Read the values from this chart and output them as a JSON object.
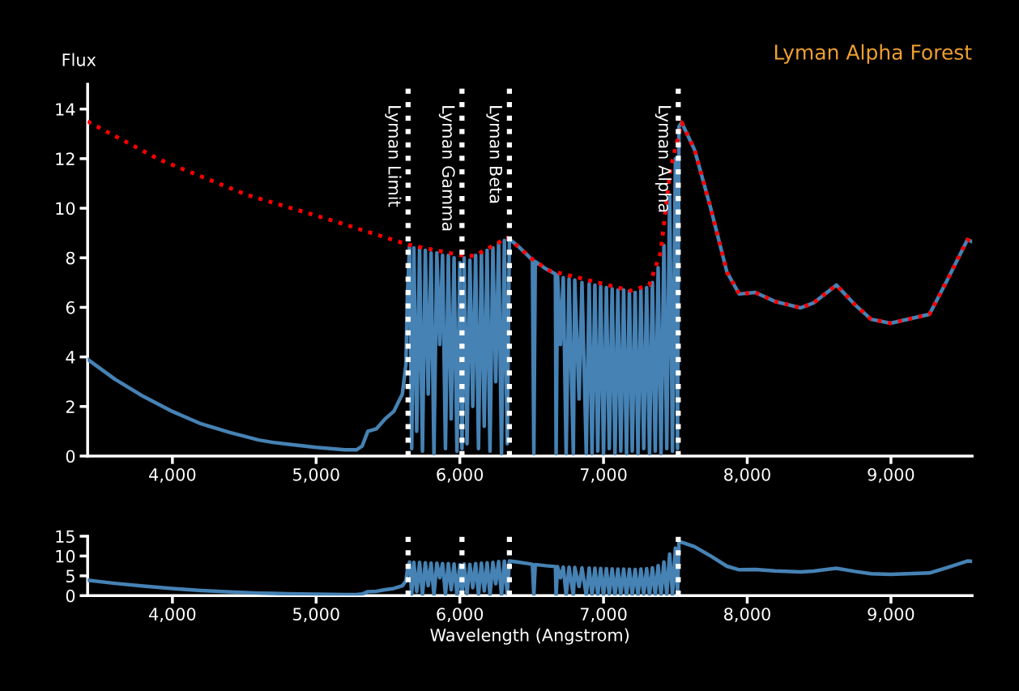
{
  "chart_data": [
    {
      "type": "line",
      "title": "Lyman Alpha Forest",
      "ylabel": "Flux",
      "xlim": [
        3410,
        9565
      ],
      "xticks": [
        {
          "value": 4000,
          "label": "4,000"
        },
        {
          "value": 5000,
          "label": "5,000"
        },
        {
          "value": 6000,
          "label": "6,000"
        },
        {
          "value": 7000,
          "label": "7,000"
        },
        {
          "value": 8000,
          "label": "8,000"
        },
        {
          "value": 9000,
          "label": "9,000"
        }
      ],
      "ylim": [
        0,
        15
      ],
      "yticks": [
        0,
        2,
        4,
        6,
        8,
        10,
        12,
        14
      ],
      "grid": false,
      "legend": false,
      "marker": "none",
      "series": [
        {
          "type": "line",
          "color": "#4682b4",
          "line_style": "solid",
          "x": [
            3410,
            3600,
            3800,
            4000,
            4200,
            4400,
            4600,
            4700,
            4800,
            5000,
            5100,
            5200,
            5280,
            5320,
            5360,
            5420,
            5480,
            5540,
            5600,
            5625,
            5635,
            5650,
            5665,
            5680,
            5700,
            5720,
            5740,
            5760,
            5780,
            5800,
            5820,
            5840,
            5860,
            5880,
            5900,
            5920,
            5940,
            5960,
            5980,
            6000,
            6015,
            6030,
            6050,
            6070,
            6090,
            6110,
            6130,
            6150,
            6170,
            6190,
            6210,
            6230,
            6250,
            6270,
            6290,
            6310,
            6330,
            6345,
            6400,
            6480,
            6505,
            6515,
            6525,
            6600,
            6665,
            6670,
            6680,
            6700,
            6720,
            6740,
            6760,
            6790,
            6800,
            6830,
            6850,
            6880,
            6900,
            6920,
            6940,
            6960,
            6980,
            7000,
            7020,
            7040,
            7060,
            7080,
            7100,
            7120,
            7140,
            7160,
            7180,
            7200,
            7220,
            7240,
            7260,
            7280,
            7300,
            7320,
            7340,
            7360,
            7380,
            7400,
            7420,
            7440,
            7460,
            7480,
            7500,
            7515,
            7525,
            7544,
            7634,
            7746,
            7859,
            7944,
            8056,
            8192,
            8372,
            8462,
            8620,
            8749,
            8862,
            8997,
            9268,
            9397,
            9532,
            9561
          ],
          "values": [
            3.9,
            3.1,
            2.4,
            1.8,
            1.3,
            0.95,
            0.65,
            0.55,
            0.48,
            0.35,
            0.3,
            0.25,
            0.25,
            0.4,
            1.0,
            1.1,
            1.5,
            1.8,
            2.5,
            3.7,
            6.5,
            8.5,
            0.3,
            8.4,
            1.0,
            8.4,
            0.2,
            8.3,
            2.5,
            8.2,
            0.1,
            8.2,
            4.5,
            8.1,
            0.3,
            8.1,
            1.5,
            8.0,
            0.2,
            7.8,
            0.3,
            8.0,
            0.5,
            7.9,
            2.0,
            8.1,
            0.3,
            8.2,
            1.2,
            8.3,
            0.2,
            8.4,
            3.0,
            8.6,
            0.1,
            8.7,
            0.5,
            8.75,
            8.5,
            8.05,
            7.9,
            0.1,
            7.85,
            7.55,
            7.35,
            0.1,
            7.3,
            4.5,
            7.2,
            0.1,
            7.15,
            0.1,
            7.1,
            2.3,
            7.0,
            0.1,
            6.95,
            0.1,
            6.9,
            0.2,
            6.85,
            0.1,
            6.8,
            0.3,
            6.75,
            0.1,
            6.7,
            0.2,
            6.7,
            0.1,
            6.65,
            0.2,
            6.6,
            0.1,
            6.7,
            0.3,
            6.8,
            0.1,
            7.0,
            0.2,
            7.6,
            0.1,
            8.5,
            0.3,
            10.5,
            0.2,
            12.0,
            0.3,
            13.3,
            13.46,
            12.35,
            10.0,
            7.42,
            6.54,
            6.6,
            6.24,
            5.98,
            6.18,
            6.9,
            6.11,
            5.52,
            5.36,
            5.72,
            7.16,
            8.73,
            8.66
          ]
        },
        {
          "type": "line",
          "color": "#ff0000",
          "line_style": "dotted",
          "x": [
            3410,
            3910,
            4513,
            5115,
            5640,
            6006,
            6100,
            6327,
            6349,
            6518,
            6625,
            6851,
            7189,
            7318,
            7397,
            7465,
            7544,
            7634,
            7746,
            7859,
            7944,
            8056,
            8192,
            8372,
            8462,
            8620,
            8749,
            8862,
            8997,
            9268,
            9397,
            9532,
            9561
          ],
          "values": [
            13.5,
            11.96,
            10.55,
            9.5,
            8.53,
            8.1,
            8.07,
            8.8,
            8.73,
            7.88,
            7.48,
            7.16,
            6.67,
            6.9,
            8.2,
            11.57,
            13.46,
            12.35,
            10.0,
            7.42,
            6.54,
            6.6,
            6.24,
            5.98,
            6.18,
            6.9,
            6.11,
            5.52,
            5.36,
            5.72,
            7.16,
            8.73,
            8.66
          ]
        }
      ],
      "ref_lines": [
        {
          "axis": "x",
          "value": 5640,
          "label": "Lyman Limit",
          "color": "#ffffff",
          "line_style": "dotted"
        },
        {
          "axis": "x",
          "value": 6015,
          "label": "Lyman Gamma",
          "color": "#ffffff",
          "line_style": "dotted"
        },
        {
          "axis": "x",
          "value": 6345,
          "label": "Lyman Beta",
          "color": "#ffffff",
          "line_style": "dotted"
        },
        {
          "axis": "x",
          "value": 7520,
          "label": "Lyman Alpha",
          "color": "#ffffff",
          "line_style": "dotted"
        }
      ]
    },
    {
      "type": "line",
      "xlabel": "Wavelength (Angstrom)",
      "xlim": [
        3410,
        9565
      ],
      "xticks": [
        {
          "value": 4000,
          "label": "4,000"
        },
        {
          "value": 5000,
          "label": "5,000"
        },
        {
          "value": 6000,
          "label": "6,000"
        },
        {
          "value": 7000,
          "label": "7,000"
        },
        {
          "value": 8000,
          "label": "8,000"
        },
        {
          "value": 9000,
          "label": "9,000"
        }
      ],
      "ylim": [
        0,
        15
      ],
      "yticks": [
        0,
        5,
        10,
        15
      ],
      "grid": false,
      "legend": false,
      "marker": "none",
      "series": [
        {
          "type": "line",
          "color": "#4682b4",
          "line_style": "solid",
          "x": [
            3410,
            3600,
            3800,
            4000,
            4200,
            4400,
            4600,
            4700,
            4800,
            5000,
            5100,
            5200,
            5280,
            5320,
            5360,
            5420,
            5480,
            5540,
            5600,
            5625,
            5635,
            5650,
            5665,
            5680,
            5700,
            5720,
            5740,
            5760,
            5780,
            5800,
            5820,
            5840,
            5860,
            5880,
            5900,
            5920,
            5940,
            5960,
            5980,
            6000,
            6015,
            6030,
            6050,
            6070,
            6090,
            6110,
            6130,
            6150,
            6170,
            6190,
            6210,
            6230,
            6250,
            6270,
            6290,
            6310,
            6330,
            6345,
            6400,
            6480,
            6505,
            6515,
            6525,
            6600,
            6665,
            6670,
            6680,
            6700,
            6720,
            6740,
            6760,
            6790,
            6800,
            6830,
            6850,
            6880,
            6900,
            6920,
            6940,
            6960,
            6980,
            7000,
            7020,
            7040,
            7060,
            7080,
            7100,
            7120,
            7140,
            7160,
            7180,
            7200,
            7220,
            7240,
            7260,
            7280,
            7300,
            7320,
            7340,
            7360,
            7380,
            7400,
            7420,
            7440,
            7460,
            7480,
            7500,
            7515,
            7525,
            7544,
            7634,
            7746,
            7859,
            7944,
            8056,
            8192,
            8372,
            8462,
            8620,
            8749,
            8862,
            8997,
            9268,
            9397,
            9532,
            9561
          ],
          "values": [
            3.9,
            3.1,
            2.4,
            1.8,
            1.3,
            0.95,
            0.65,
            0.55,
            0.48,
            0.35,
            0.3,
            0.25,
            0.25,
            0.4,
            1.0,
            1.1,
            1.5,
            1.8,
            2.5,
            3.7,
            6.5,
            8.5,
            0.3,
            8.4,
            1.0,
            8.4,
            0.2,
            8.3,
            2.5,
            8.2,
            0.1,
            8.2,
            4.5,
            8.1,
            0.3,
            8.1,
            1.5,
            8.0,
            0.2,
            7.8,
            0.3,
            8.0,
            0.5,
            7.9,
            2.0,
            8.1,
            0.3,
            8.2,
            1.2,
            8.3,
            0.2,
            8.4,
            3.0,
            8.6,
            0.1,
            8.7,
            0.5,
            8.75,
            8.5,
            8.05,
            7.9,
            0.1,
            7.85,
            7.55,
            7.35,
            0.1,
            7.3,
            4.5,
            7.2,
            0.1,
            7.15,
            0.1,
            7.1,
            2.3,
            7.0,
            0.1,
            6.95,
            0.1,
            6.9,
            0.2,
            6.85,
            0.1,
            6.8,
            0.3,
            6.75,
            0.1,
            6.7,
            0.2,
            6.7,
            0.1,
            6.65,
            0.2,
            6.6,
            0.1,
            6.7,
            0.3,
            6.8,
            0.1,
            7.0,
            0.2,
            7.6,
            0.1,
            8.5,
            0.3,
            10.5,
            0.2,
            12.0,
            0.3,
            13.3,
            13.46,
            12.35,
            10.0,
            7.42,
            6.54,
            6.6,
            6.24,
            5.98,
            6.18,
            6.9,
            6.11,
            5.52,
            5.36,
            5.72,
            7.16,
            8.73,
            8.66
          ]
        }
      ],
      "ref_lines": [
        {
          "axis": "x",
          "value": 5640,
          "color": "#ffffff",
          "line_style": "dotted"
        },
        {
          "axis": "x",
          "value": 6015,
          "color": "#ffffff",
          "line_style": "dotted"
        },
        {
          "axis": "x",
          "value": 6345,
          "color": "#ffffff",
          "line_style": "dotted"
        },
        {
          "axis": "x",
          "value": 7520,
          "color": "#ffffff",
          "line_style": "dotted"
        }
      ]
    }
  ]
}
